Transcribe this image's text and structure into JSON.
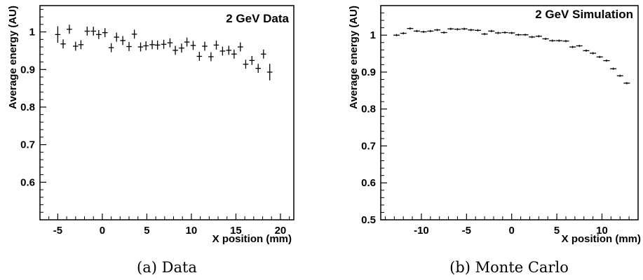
{
  "chart_data": [
    {
      "type": "scatter",
      "label": "2 GeV Data",
      "caption": "(a) Data",
      "xlabel": "X position (mm)",
      "ylabel": "Average energy (AU)",
      "xlim": [
        -7,
        21.5
      ],
      "ylim": [
        0.5,
        1.07
      ],
      "x_ticks": [
        -5,
        0,
        5,
        10,
        15,
        20
      ],
      "y_ticks": [
        0.6,
        0.7,
        0.8,
        0.9,
        1
      ],
      "x_error": 0.3,
      "grid": false,
      "points": [
        {
          "x": -5.0,
          "y": 0.993,
          "err": 0.022
        },
        {
          "x": -4.4,
          "y": 0.968,
          "err": 0.012
        },
        {
          "x": -3.7,
          "y": 1.007,
          "err": 0.012
        },
        {
          "x": -3.0,
          "y": 0.962,
          "err": 0.012
        },
        {
          "x": -2.4,
          "y": 0.966,
          "err": 0.012
        },
        {
          "x": -1.7,
          "y": 1.002,
          "err": 0.012
        },
        {
          "x": -1.0,
          "y": 1.002,
          "err": 0.012
        },
        {
          "x": -0.4,
          "y": 0.993,
          "err": 0.012
        },
        {
          "x": 0.3,
          "y": 0.998,
          "err": 0.012
        },
        {
          "x": 1.0,
          "y": 0.958,
          "err": 0.012
        },
        {
          "x": 1.6,
          "y": 0.986,
          "err": 0.012
        },
        {
          "x": 2.3,
          "y": 0.977,
          "err": 0.012
        },
        {
          "x": 3.0,
          "y": 0.961,
          "err": 0.012
        },
        {
          "x": 3.6,
          "y": 0.994,
          "err": 0.012
        },
        {
          "x": 4.3,
          "y": 0.96,
          "err": 0.012
        },
        {
          "x": 4.9,
          "y": 0.963,
          "err": 0.012
        },
        {
          "x": 5.6,
          "y": 0.966,
          "err": 0.012
        },
        {
          "x": 6.2,
          "y": 0.965,
          "err": 0.012
        },
        {
          "x": 6.9,
          "y": 0.967,
          "err": 0.012
        },
        {
          "x": 7.6,
          "y": 0.971,
          "err": 0.012
        },
        {
          "x": 8.2,
          "y": 0.951,
          "err": 0.012
        },
        {
          "x": 8.9,
          "y": 0.957,
          "err": 0.012
        },
        {
          "x": 9.5,
          "y": 0.973,
          "err": 0.012
        },
        {
          "x": 10.2,
          "y": 0.964,
          "err": 0.012
        },
        {
          "x": 10.9,
          "y": 0.935,
          "err": 0.012
        },
        {
          "x": 11.5,
          "y": 0.962,
          "err": 0.012
        },
        {
          "x": 12.2,
          "y": 0.934,
          "err": 0.012
        },
        {
          "x": 12.8,
          "y": 0.965,
          "err": 0.012
        },
        {
          "x": 13.5,
          "y": 0.949,
          "err": 0.012
        },
        {
          "x": 14.2,
          "y": 0.951,
          "err": 0.012
        },
        {
          "x": 14.8,
          "y": 0.941,
          "err": 0.012
        },
        {
          "x": 15.5,
          "y": 0.96,
          "err": 0.012
        },
        {
          "x": 16.1,
          "y": 0.914,
          "err": 0.012
        },
        {
          "x": 16.8,
          "y": 0.924,
          "err": 0.012
        },
        {
          "x": 17.5,
          "y": 0.903,
          "err": 0.012
        },
        {
          "x": 18.1,
          "y": 0.941,
          "err": 0.012
        },
        {
          "x": 18.8,
          "y": 0.893,
          "err": 0.022
        }
      ]
    },
    {
      "type": "scatter",
      "label": "2 GeV Simulation",
      "caption": "(b) Monte Carlo",
      "xlabel": "X position (mm)",
      "ylabel": "Average energy (AU)",
      "xlim": [
        -14.5,
        14.0
      ],
      "ylim": [
        0.5,
        1.08
      ],
      "x_ticks": [
        -10,
        -5,
        0,
        5,
        10
      ],
      "y_ticks": [
        0.5,
        0.6,
        0.7,
        0.8,
        0.9,
        1
      ],
      "x_error": 0.35,
      "grid": false,
      "points": [
        {
          "x": -12.75,
          "y": 1.0,
          "err": 0.003
        },
        {
          "x": -12.0,
          "y": 1.005,
          "err": 0.003
        },
        {
          "x": -11.25,
          "y": 1.018,
          "err": 0.003
        },
        {
          "x": -10.5,
          "y": 1.011,
          "err": 0.003
        },
        {
          "x": -9.75,
          "y": 1.009,
          "err": 0.003
        },
        {
          "x": -9.0,
          "y": 1.011,
          "err": 0.003
        },
        {
          "x": -8.25,
          "y": 1.014,
          "err": 0.003
        },
        {
          "x": -7.5,
          "y": 1.007,
          "err": 0.003
        },
        {
          "x": -6.75,
          "y": 1.017,
          "err": 0.003
        },
        {
          "x": -6.0,
          "y": 1.016,
          "err": 0.003
        },
        {
          "x": -5.25,
          "y": 1.017,
          "err": 0.003
        },
        {
          "x": -4.5,
          "y": 1.014,
          "err": 0.003
        },
        {
          "x": -3.75,
          "y": 1.013,
          "err": 0.003
        },
        {
          "x": -3.0,
          "y": 1.003,
          "err": 0.003
        },
        {
          "x": -2.25,
          "y": 1.011,
          "err": 0.003
        },
        {
          "x": -1.5,
          "y": 1.006,
          "err": 0.003
        },
        {
          "x": -0.75,
          "y": 1.007,
          "err": 0.003
        },
        {
          "x": 0.0,
          "y": 1.006,
          "err": 0.003
        },
        {
          "x": 0.75,
          "y": 1.001,
          "err": 0.003
        },
        {
          "x": 1.5,
          "y": 1.001,
          "err": 0.003
        },
        {
          "x": 2.25,
          "y": 0.995,
          "err": 0.003
        },
        {
          "x": 3.0,
          "y": 0.997,
          "err": 0.003
        },
        {
          "x": 3.75,
          "y": 0.99,
          "err": 0.003
        },
        {
          "x": 4.5,
          "y": 0.985,
          "err": 0.003
        },
        {
          "x": 5.25,
          "y": 0.985,
          "err": 0.003
        },
        {
          "x": 6.0,
          "y": 0.984,
          "err": 0.003
        },
        {
          "x": 6.75,
          "y": 0.968,
          "err": 0.003
        },
        {
          "x": 7.5,
          "y": 0.971,
          "err": 0.003
        },
        {
          "x": 8.25,
          "y": 0.958,
          "err": 0.003
        },
        {
          "x": 9.0,
          "y": 0.951,
          "err": 0.003
        },
        {
          "x": 9.75,
          "y": 0.941,
          "err": 0.003
        },
        {
          "x": 10.5,
          "y": 0.931,
          "err": 0.003
        },
        {
          "x": 11.25,
          "y": 0.909,
          "err": 0.003
        },
        {
          "x": 12.0,
          "y": 0.89,
          "err": 0.003
        },
        {
          "x": 12.75,
          "y": 0.87,
          "err": 0.003
        }
      ]
    }
  ]
}
